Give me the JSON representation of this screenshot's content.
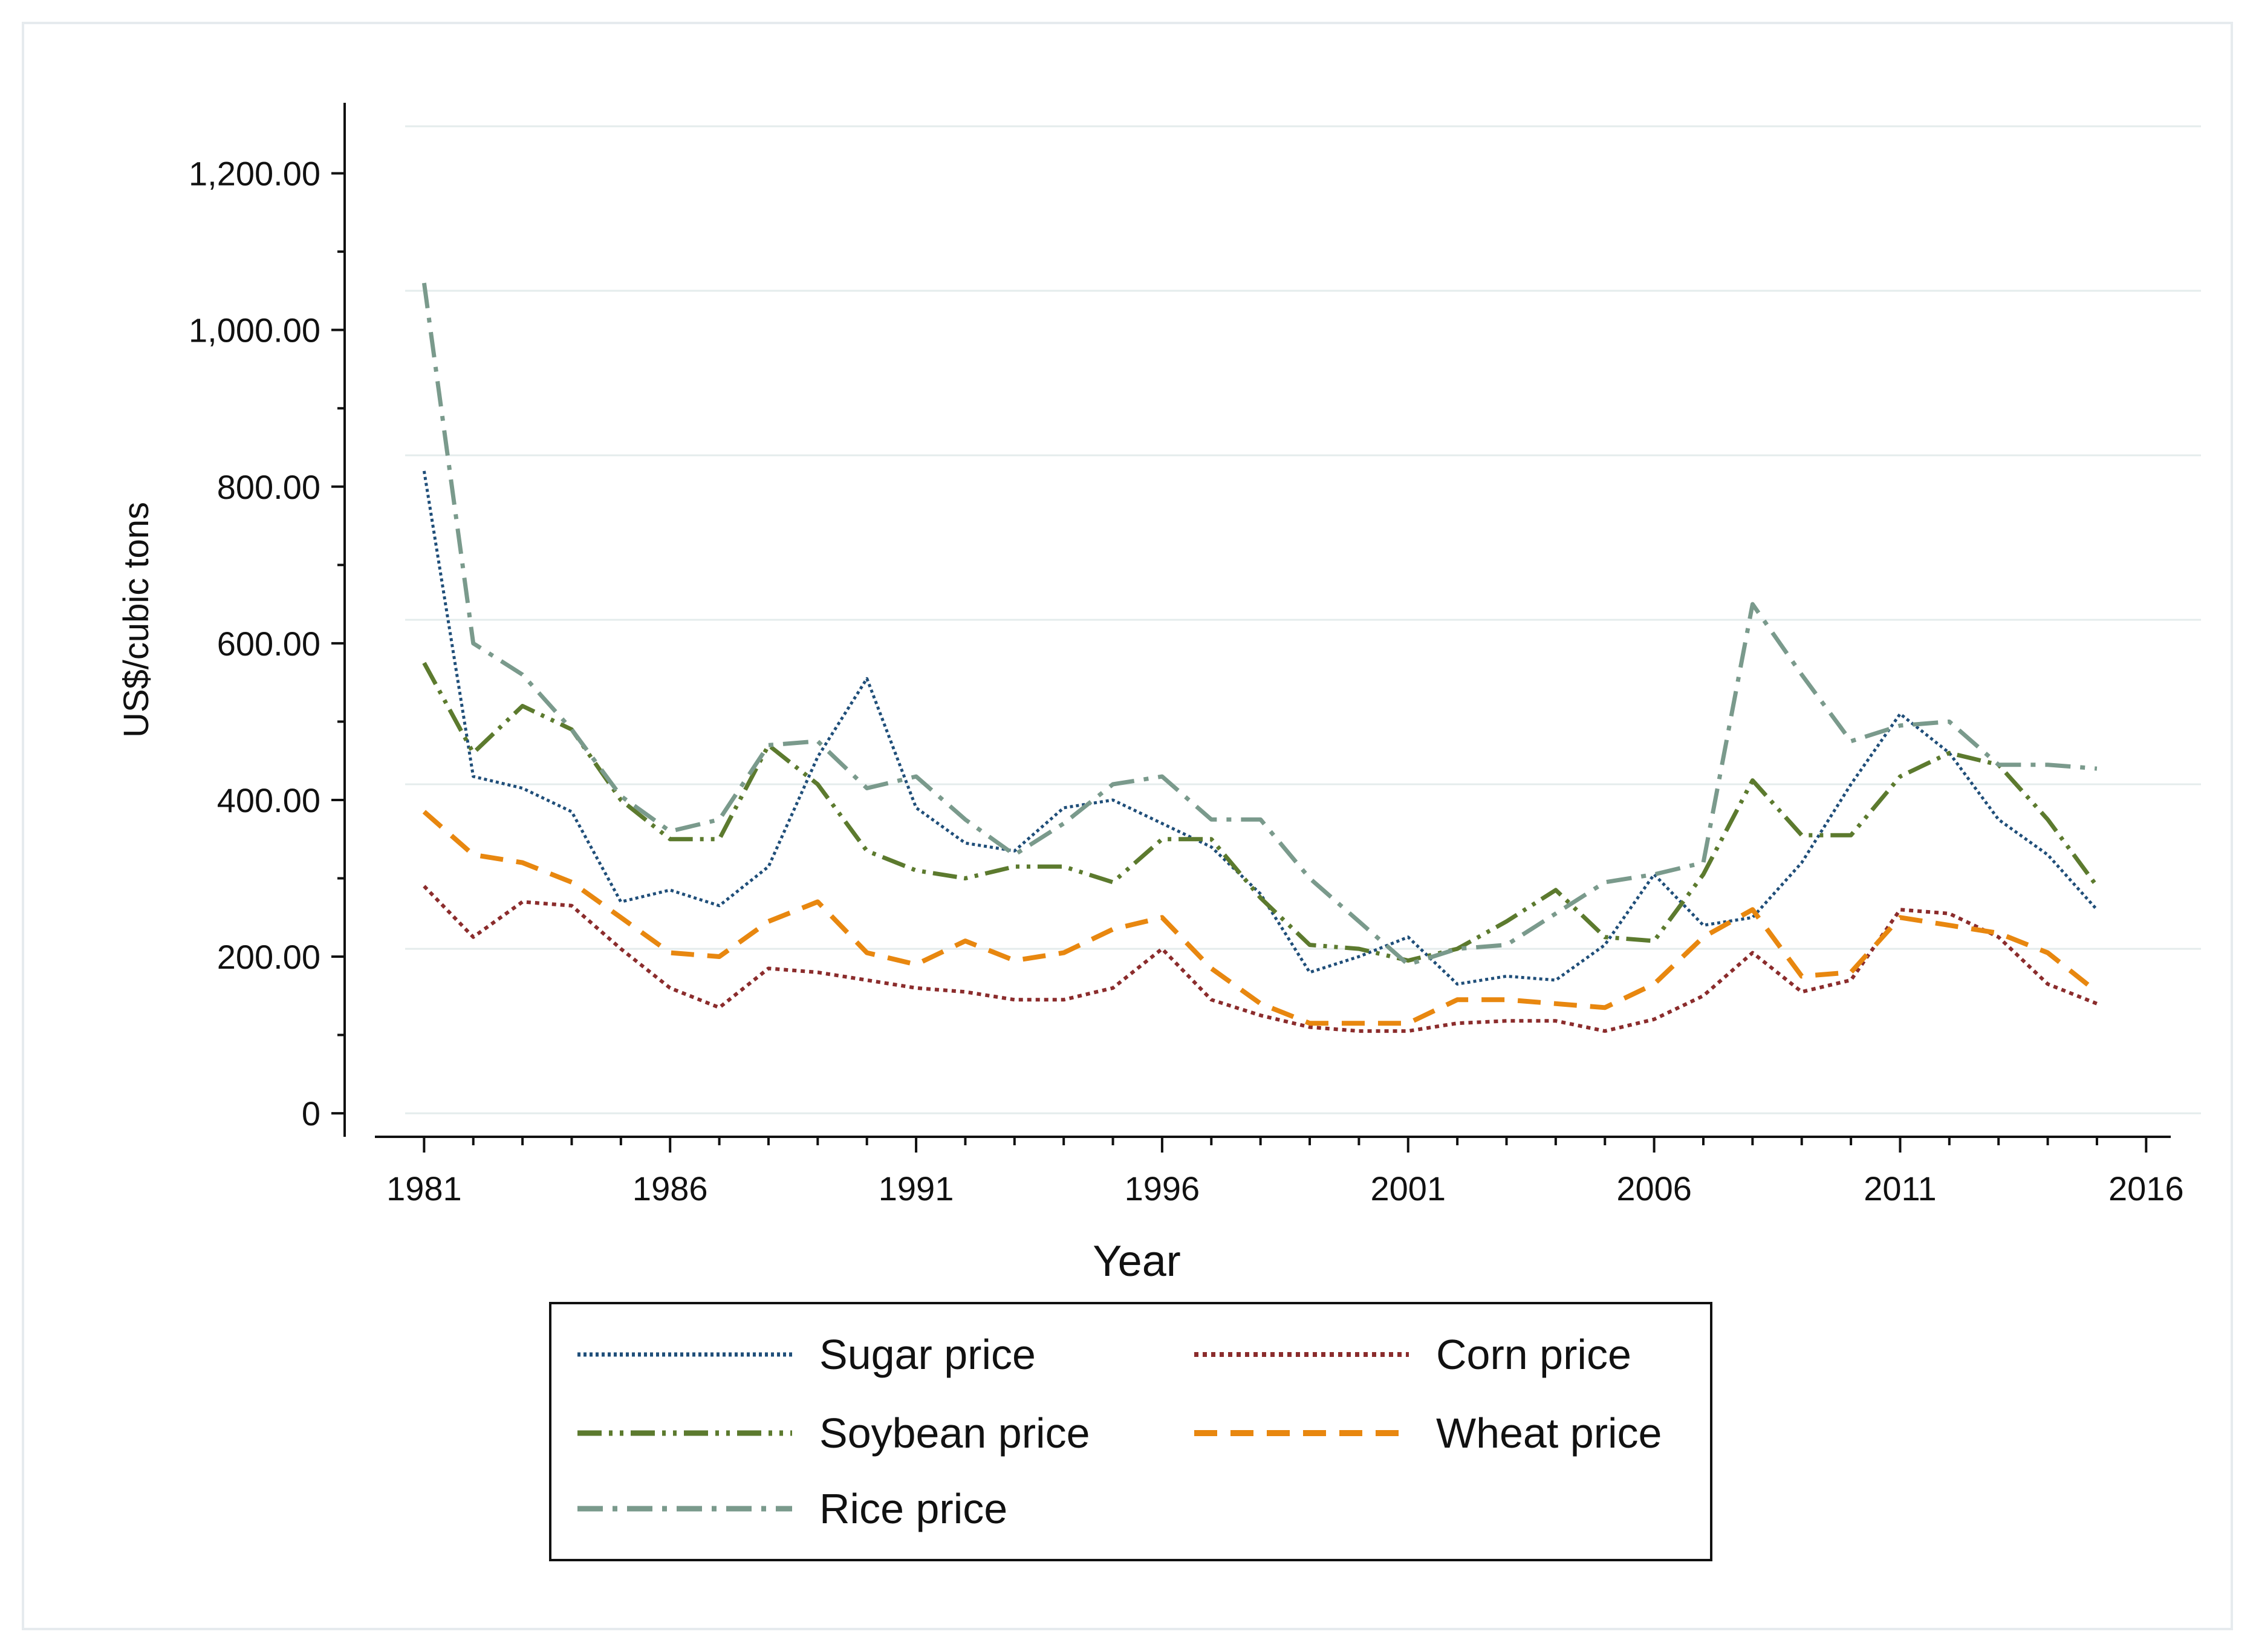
{
  "chart_data": {
    "type": "line",
    "title": "",
    "xlabel": "Year",
    "ylabel": "US$/cubic tons",
    "xlim": [
      1980,
      2016.5
    ],
    "ylim": [
      -30,
      1290
    ],
    "x_ticks": [
      1981,
      1986,
      1991,
      1996,
      2001,
      2006,
      2011,
      2016
    ],
    "x_tick_labels": [
      "1981",
      "1986",
      "1991",
      "1996",
      "2001",
      "2006",
      "2011",
      "2016"
    ],
    "y_ticks": [
      0,
      200,
      400,
      600,
      800,
      1000,
      1200
    ],
    "y_tick_labels": [
      "0",
      "200.00",
      "400.00",
      "600.00",
      "800.00",
      "1,000.00",
      "1,200.00"
    ],
    "gridlines": [
      0,
      210,
      420,
      630,
      840,
      1050,
      1260
    ],
    "legend_position": "bottom",
    "x": [
      1981,
      1982,
      1983,
      1984,
      1985,
      1986,
      1987,
      1988,
      1989,
      1990,
      1991,
      1992,
      1993,
      1994,
      1995,
      1996,
      1997,
      1998,
      1999,
      2000,
      2001,
      2002,
      2003,
      2004,
      2005,
      2006,
      2007,
      2008,
      2009,
      2010,
      2011,
      2012,
      2013,
      2014,
      2015
    ],
    "series": [
      {
        "name": "Sugar price",
        "color": "#1f4e79",
        "style": "dotted",
        "values": [
          820,
          430,
          415,
          385,
          270,
          285,
          265,
          315,
          455,
          555,
          390,
          345,
          335,
          390,
          400,
          370,
          340,
          280,
          180,
          200,
          225,
          165,
          175,
          170,
          215,
          305,
          240,
          250,
          320,
          420,
          510,
          460,
          375,
          330,
          260
        ]
      },
      {
        "name": "Corn price",
        "color": "#8b2c2c",
        "style": "dense-dotted",
        "values": [
          290,
          225,
          270,
          265,
          210,
          160,
          135,
          185,
          180,
          170,
          160,
          155,
          145,
          145,
          160,
          210,
          145,
          125,
          110,
          105,
          105,
          115,
          118,
          118,
          105,
          120,
          150,
          205,
          155,
          170,
          260,
          255,
          225,
          165,
          140
        ]
      },
      {
        "name": "Soybean price",
        "color": "#5c7a2e",
        "style": "dash-dot-dot",
        "values": [
          575,
          460,
          520,
          490,
          400,
          350,
          350,
          470,
          420,
          335,
          310,
          300,
          315,
          315,
          295,
          350,
          350,
          275,
          215,
          210,
          195,
          210,
          245,
          285,
          225,
          220,
          305,
          425,
          355,
          355,
          430,
          460,
          445,
          375,
          290
        ]
      },
      {
        "name": "Wheat price",
        "color": "#e8870f",
        "style": "dashed",
        "values": [
          385,
          330,
          320,
          295,
          250,
          205,
          200,
          245,
          270,
          205,
          190,
          220,
          195,
          205,
          235,
          250,
          185,
          140,
          115,
          115,
          115,
          145,
          145,
          140,
          135,
          165,
          225,
          260,
          175,
          180,
          250,
          240,
          230,
          205,
          155
        ]
      },
      {
        "name": "Rice price",
        "color": "#7a9a8c",
        "style": "dash-dot",
        "values": [
          1060,
          600,
          560,
          490,
          405,
          360,
          375,
          470,
          475,
          415,
          430,
          375,
          330,
          370,
          420,
          430,
          375,
          375,
          300,
          245,
          190,
          210,
          215,
          255,
          295,
          305,
          320,
          650,
          560,
          475,
          495,
          500,
          445,
          445,
          440
        ]
      }
    ]
  }
}
